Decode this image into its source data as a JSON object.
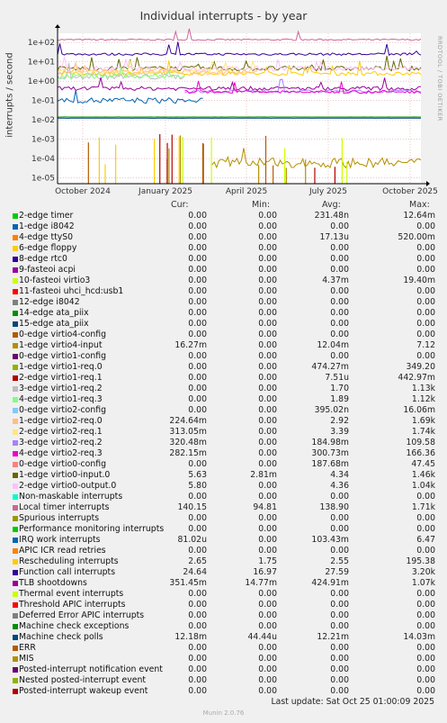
{
  "title": "Individual interrupts - by year",
  "ylabel": "interrupts / second",
  "side_text": "RRDTOOL / TOBI OETIKER",
  "columns": [
    "Cur:",
    "Min:",
    "Avg:",
    "Max:"
  ],
  "last_update": "Last update: Sat Oct 25 01:00:09 2025",
  "munin_version": "Munin 2.0.76",
  "chart_data": {
    "type": "line",
    "yscale": "log",
    "ylim": [
      5e-06,
      300
    ],
    "yticks": [
      "1e-05",
      "1e-04",
      "1e-03",
      "1e-02",
      "1e-01",
      "1e+00",
      "1e+01",
      "1e+02"
    ],
    "xticks": [
      "October 2024",
      "January 2025",
      "April 2025",
      "July 2025",
      "October 2025"
    ],
    "grid": true,
    "series": [
      {
        "name": "2-edge timer",
        "color": "#00cc00",
        "values": [
          "0.00",
          "0.00",
          "231.48n",
          "12.64m"
        ]
      },
      {
        "name": "1-edge i8042",
        "color": "#0066b3",
        "values": [
          "0.00",
          "0.00",
          "0.00",
          "0.00"
        ]
      },
      {
        "name": "4-edge ttyS0",
        "color": "#ff8000",
        "values": [
          "0.00",
          "0.00",
          "17.13u",
          "520.00m"
        ]
      },
      {
        "name": "6-edge floppy",
        "color": "#ffcc00",
        "values": [
          "0.00",
          "0.00",
          "0.00",
          "0.00"
        ]
      },
      {
        "name": "8-edge rtc0",
        "color": "#330099",
        "values": [
          "0.00",
          "0.00",
          "0.00",
          "0.00"
        ]
      },
      {
        "name": "9-fasteoi acpi",
        "color": "#990099",
        "values": [
          "0.00",
          "0.00",
          "0.00",
          "0.00"
        ]
      },
      {
        "name": "10-fasteoi virtio3",
        "color": "#ccff00",
        "values": [
          "0.00",
          "0.00",
          "4.37m",
          "19.40m"
        ]
      },
      {
        "name": "11-fasteoi uhci_hcd:usb1",
        "color": "#ff0000",
        "values": [
          "0.00",
          "0.00",
          "0.00",
          "0.00"
        ]
      },
      {
        "name": "12-edge i8042",
        "color": "#808080",
        "values": [
          "0.00",
          "0.00",
          "0.00",
          "0.00"
        ]
      },
      {
        "name": "14-edge ata_piix",
        "color": "#008f00",
        "values": [
          "0.00",
          "0.00",
          "0.00",
          "0.00"
        ]
      },
      {
        "name": "15-edge ata_piix",
        "color": "#00487d",
        "values": [
          "0.00",
          "0.00",
          "0.00",
          "0.00"
        ]
      },
      {
        "name": "0-edge virtio4-config",
        "color": "#b35a00",
        "values": [
          "0.00",
          "0.00",
          "0.00",
          "0.00"
        ]
      },
      {
        "name": "1-edge virtio4-input",
        "color": "#b38f00",
        "values": [
          "16.27m",
          "0.00",
          "12.04m",
          "7.12"
        ]
      },
      {
        "name": "0-edge virtio1-config",
        "color": "#6b006b",
        "values": [
          "0.00",
          "0.00",
          "0.00",
          "0.00"
        ]
      },
      {
        "name": "1-edge virtio1-req.0",
        "color": "#8fb300",
        "values": [
          "0.00",
          "0.00",
          "474.27m",
          "349.20"
        ]
      },
      {
        "name": "2-edge virtio1-req.1",
        "color": "#b30000",
        "values": [
          "0.00",
          "0.00",
          "7.51u",
          "442.97m"
        ]
      },
      {
        "name": "3-edge virtio1-req.2",
        "color": "#bebebe",
        "values": [
          "0.00",
          "0.00",
          "1.70",
          "1.13k"
        ]
      },
      {
        "name": "4-edge virtio1-req.3",
        "color": "#80ff80",
        "values": [
          "0.00",
          "0.00",
          "1.89",
          "1.12k"
        ]
      },
      {
        "name": "0-edge virtio2-config",
        "color": "#80c9ff",
        "values": [
          "0.00",
          "0.00",
          "395.02n",
          "16.06m"
        ]
      },
      {
        "name": "1-edge virtio2-req.0",
        "color": "#ffc080",
        "values": [
          "224.64m",
          "0.00",
          "2.92",
          "1.69k"
        ]
      },
      {
        "name": "2-edge virtio2-req.1",
        "color": "#ffe680",
        "values": [
          "313.05m",
          "0.00",
          "3.39",
          "1.74k"
        ]
      },
      {
        "name": "3-edge virtio2-req.2",
        "color": "#aa80ff",
        "values": [
          "320.48m",
          "0.00",
          "184.98m",
          "109.58"
        ]
      },
      {
        "name": "4-edge virtio2-req.3",
        "color": "#ee00cc",
        "values": [
          "282.15m",
          "0.00",
          "300.73m",
          "166.36"
        ]
      },
      {
        "name": "0-edge virtio0-config",
        "color": "#ff8080",
        "values": [
          "0.00",
          "0.00",
          "187.68m",
          "47.45"
        ]
      },
      {
        "name": "1-edge virtio0-input.0",
        "color": "#666600",
        "values": [
          "5.63",
          "2.81m",
          "4.34",
          "1.46k"
        ]
      },
      {
        "name": "2-edge virtio0-output.0",
        "color": "#ffbfff",
        "values": [
          "5.80",
          "0.00",
          "4.36",
          "1.04k"
        ]
      },
      {
        "name": "Non-maskable interrupts",
        "color": "#00ffcc",
        "values": [
          "0.00",
          "0.00",
          "0.00",
          "0.00"
        ]
      },
      {
        "name": "Local timer interrupts",
        "color": "#cc6699",
        "values": [
          "140.15",
          "94.81",
          "138.90",
          "1.71k"
        ]
      },
      {
        "name": "Spurious interrupts",
        "color": "#999900",
        "values": [
          "0.00",
          "0.00",
          "0.00",
          "0.00"
        ]
      },
      {
        "name": "Performance monitoring interrupts",
        "color": "#00cc00",
        "values": [
          "0.00",
          "0.00",
          "0.00",
          "0.00"
        ]
      },
      {
        "name": "IRQ work interrupts",
        "color": "#0066b3",
        "values": [
          "81.02u",
          "0.00",
          "103.43m",
          "6.47"
        ]
      },
      {
        "name": "APIC ICR read retries",
        "color": "#ff8000",
        "values": [
          "0.00",
          "0.00",
          "0.00",
          "0.00"
        ]
      },
      {
        "name": "Rescheduling interrupts",
        "color": "#ffcc00",
        "values": [
          "2.65",
          "1.75",
          "2.55",
          "195.38"
        ]
      },
      {
        "name": "Function call interrupts",
        "color": "#330099",
        "values": [
          "24.64",
          "16.97",
          "27.59",
          "3.20k"
        ]
      },
      {
        "name": "TLB shootdowns",
        "color": "#990099",
        "values": [
          "351.45m",
          "14.77m",
          "424.91m",
          "1.07k"
        ]
      },
      {
        "name": "Thermal event interrupts",
        "color": "#ccff00",
        "values": [
          "0.00",
          "0.00",
          "0.00",
          "0.00"
        ]
      },
      {
        "name": "Threshold APIC interrupts",
        "color": "#ff0000",
        "values": [
          "0.00",
          "0.00",
          "0.00",
          "0.00"
        ]
      },
      {
        "name": "Deferred Error APIC interrupts",
        "color": "#808080",
        "values": [
          "0.00",
          "0.00",
          "0.00",
          "0.00"
        ]
      },
      {
        "name": "Machine check exceptions",
        "color": "#008f00",
        "values": [
          "0.00",
          "0.00",
          "0.00",
          "0.00"
        ]
      },
      {
        "name": "Machine check polls",
        "color": "#00487d",
        "values": [
          "12.18m",
          "44.44u",
          "12.21m",
          "14.03m"
        ]
      },
      {
        "name": "ERR",
        "color": "#b35a00",
        "values": [
          "0.00",
          "0.00",
          "0.00",
          "0.00"
        ]
      },
      {
        "name": "MIS",
        "color": "#b38f00",
        "values": [
          "0.00",
          "0.00",
          "0.00",
          "0.00"
        ]
      },
      {
        "name": "Posted-interrupt notification event",
        "color": "#6b006b",
        "values": [
          "0.00",
          "0.00",
          "0.00",
          "0.00"
        ]
      },
      {
        "name": "Nested posted-interrupt event",
        "color": "#8fb300",
        "values": [
          "0.00",
          "0.00",
          "0.00",
          "0.00"
        ]
      },
      {
        "name": "Posted-interrupt wakeup event",
        "color": "#b30000",
        "values": [
          "0.00",
          "0.00",
          "0.00",
          "0.00"
        ]
      }
    ],
    "lines": [
      {
        "color": "#cc6699",
        "level": 140,
        "noise": 0.08,
        "spikes": 0.02
      },
      {
        "color": "#330099",
        "level": 25,
        "noise": 0.12,
        "spikes": 0.03
      },
      {
        "color": "#ffcc00",
        "level": 2.5,
        "noise": 0.2,
        "spikes": 0.05
      },
      {
        "color": "#666600",
        "level": 4.5,
        "noise": 0.25,
        "spikes": 0.05
      },
      {
        "color": "#ffbfff",
        "level": 4.4,
        "noise": 0.25,
        "spikes": 0.05
      },
      {
        "color": "#ffe680",
        "level": 3.3,
        "noise": 0.3,
        "spikes": 0.06,
        "end": 0.55
      },
      {
        "color": "#ffc080",
        "level": 2.9,
        "noise": 0.3,
        "spikes": 0.06,
        "end": 0.55
      },
      {
        "color": "#bebebe",
        "level": 1.7,
        "noise": 0.3,
        "spikes": 0.04,
        "end": 0.35
      },
      {
        "color": "#80ff80",
        "level": 1.9,
        "noise": 0.3,
        "spikes": 0.04,
        "end": 0.35
      },
      {
        "color": "#0066b3",
        "level": 0.1,
        "noise": 0.3,
        "spikes": 0.02,
        "end": 0.4
      },
      {
        "color": "#990099",
        "level": 0.42,
        "noise": 0.2,
        "spikes": 0.04
      },
      {
        "color": "#aa80ff",
        "level": 0.3,
        "noise": 0.15,
        "spikes": 0.02,
        "start": 0.35
      },
      {
        "color": "#ee00cc",
        "level": 0.28,
        "noise": 0.15,
        "spikes": 0.02,
        "start": 0.35
      },
      {
        "color": "#00487d",
        "level": 0.0122,
        "noise": 0.01,
        "spikes": 0.0
      },
      {
        "color": "#008f00",
        "level": 0.014,
        "noise": 0.005,
        "spikes": 0.0
      },
      {
        "color": "#b38f00",
        "level": 6e-05,
        "noise": 0.5,
        "spikes": 0.03,
        "start": 0.42
      }
    ]
  }
}
